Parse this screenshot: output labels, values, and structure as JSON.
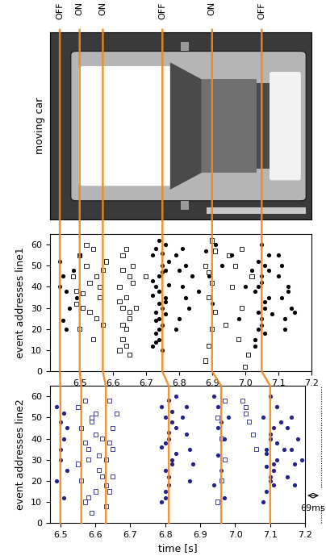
{
  "photo_label": "moving car",
  "transitions": [
    {
      "label": "OFF",
      "time_line1": 6.44,
      "time_line2": 6.5
    },
    {
      "label": "ON",
      "time_line1": 6.5,
      "time_line2": 6.56
    },
    {
      "label": "ON",
      "time_line1": 6.57,
      "time_line2": 6.63
    },
    {
      "label": "OFF",
      "time_line1": 6.75,
      "time_line2": 6.81
    },
    {
      "label": "ON",
      "time_line1": 6.9,
      "time_line2": 6.96
    },
    {
      "label": "OFF",
      "time_line1": 7.05,
      "time_line2": 7.1
    }
  ],
  "chart_data": [
    {
      "type": "scatter",
      "ylabel": "event addresses line1",
      "xlim": [
        6.41,
        7.2
      ],
      "ylim": [
        0,
        65
      ],
      "xticks": [
        6.5,
        6.6,
        6.7,
        6.8,
        6.9,
        7.0,
        7.1,
        7.2
      ],
      "yticks": [
        0,
        10,
        20,
        30,
        40,
        50,
        60
      ],
      "series": [
        {
          "color": "#000000",
          "marker": "circle",
          "x": [
            6.44,
            6.45,
            6.46,
            6.47,
            6.45,
            6.48,
            6.49,
            6.46,
            6.44,
            6.5,
            6.72,
            6.73,
            6.74,
            6.75,
            6.76,
            6.73,
            6.74,
            6.75,
            6.72,
            6.76,
            6.74,
            6.75,
            6.73,
            6.76,
            6.74,
            6.72,
            6.75,
            6.77,
            6.73,
            6.74,
            6.75,
            6.73,
            6.76,
            6.74,
            6.72,
            6.77,
            6.75,
            6.74,
            6.73,
            6.76,
            6.79,
            6.8,
            6.81,
            6.82,
            6.83,
            6.8,
            6.84,
            6.81,
            6.79,
            6.82,
            6.88,
            6.89,
            6.9,
            6.91,
            6.93,
            6.86,
            6.96,
            6.98,
            7.0,
            7.02,
            7.03,
            7.04,
            7.05,
            7.06,
            7.07,
            7.04,
            7.05,
            7.06,
            7.03,
            7.07,
            7.05,
            7.04,
            7.06,
            7.03,
            7.05,
            7.07,
            7.04,
            7.06,
            7.08,
            7.05,
            7.1,
            7.11,
            7.12,
            7.13,
            7.14,
            7.11,
            7.12,
            7.13,
            7.15,
            7.1
          ],
          "values": [
            52,
            45,
            38,
            30,
            24,
            48,
            35,
            20,
            40,
            55,
            12,
            18,
            25,
            30,
            35,
            40,
            45,
            50,
            55,
            60,
            15,
            22,
            28,
            33,
            38,
            43,
            47,
            52,
            58,
            20,
            10,
            14,
            27,
            32,
            36,
            41,
            56,
            62,
            24,
            48,
            55,
            48,
            40,
            35,
            30,
            25,
            45,
            58,
            20,
            50,
            57,
            45,
            32,
            60,
            50,
            38,
            55,
            25,
            40,
            48,
            15,
            20,
            25,
            30,
            35,
            40,
            45,
            50,
            12,
            55,
            22,
            28,
            33,
            38,
            42,
            48,
            52,
            18,
            27,
            60,
            45,
            35,
            25,
            40,
            30,
            50,
            20,
            38,
            28,
            55
          ]
        },
        {
          "color": "#000000",
          "marker": "square",
          "x": [
            6.48,
            6.49,
            6.5,
            6.51,
            6.52,
            6.53,
            6.54,
            6.55,
            6.56,
            6.57,
            6.5,
            6.52,
            6.54,
            6.56,
            6.58,
            6.49,
            6.53,
            6.55,
            6.57,
            6.51,
            6.62,
            6.63,
            6.64,
            6.65,
            6.63,
            6.64,
            6.62,
            6.65,
            6.66,
            6.63,
            6.64,
            6.63,
            6.65,
            6.62,
            6.66,
            6.64,
            6.63,
            6.65,
            6.67,
            6.7,
            6.88,
            6.89,
            6.9,
            6.91,
            6.89,
            6.9,
            6.88,
            6.91,
            6.9,
            6.89,
            6.95,
            6.97,
            6.99,
            7.0,
            6.96,
            6.98,
            7.01,
            6.94,
            7.02,
            6.99
          ],
          "values": [
            45,
            38,
            55,
            30,
            50,
            42,
            58,
            25,
            35,
            48,
            20,
            60,
            15,
            40,
            52,
            32,
            28,
            45,
            22,
            37,
            10,
            15,
            20,
            25,
            30,
            35,
            40,
            45,
            50,
            55,
            58,
            22,
            28,
            33,
            42,
            12,
            48,
            8,
            30,
            45,
            5,
            12,
            20,
            28,
            35,
            42,
            50,
            57,
            62,
            47,
            55,
            50,
            30,
            2,
            40,
            15,
            8,
            22,
            45,
            58
          ]
        }
      ]
    },
    {
      "type": "scatter",
      "ylabel": "event addresses line2",
      "xlabel": "time [s]",
      "annotations": [
        "69ms"
      ],
      "xlim": [
        6.47,
        7.2
      ],
      "ylim": [
        0,
        65
      ],
      "xticks": [
        6.5,
        6.6,
        6.7,
        6.8,
        6.9,
        7.0,
        7.1,
        7.2
      ],
      "yticks": [
        0,
        10,
        20,
        30,
        40,
        50,
        60
      ],
      "series": [
        {
          "color": "#23238c",
          "marker": "circle",
          "x": [
            6.49,
            6.5,
            6.51,
            6.5,
            6.52,
            6.49,
            6.51,
            6.5,
            6.52,
            6.51,
            6.79,
            6.8,
            6.81,
            6.82,
            6.83,
            6.8,
            6.81,
            6.82,
            6.79,
            6.83,
            6.81,
            6.8,
            6.82,
            6.79,
            6.81,
            6.83,
            6.8,
            6.82,
            6.81,
            6.8,
            6.85,
            6.86,
            6.87,
            6.88,
            6.86,
            6.87,
            6.94,
            6.95,
            6.96,
            6.97,
            6.95,
            6.96,
            6.94,
            6.97,
            6.98,
            6.95,
            7.08,
            7.09,
            7.1,
            7.11,
            7.12,
            7.09,
            7.1,
            7.11,
            7.08,
            7.12,
            7.1,
            7.11,
            7.09,
            7.12,
            7.1,
            7.13,
            7.11,
            7.09,
            7.14,
            7.1,
            7.15,
            7.16,
            7.17,
            7.18,
            7.15,
            7.16,
            7.19,
            7.17
          ],
          "values": [
            55,
            48,
            40,
            30,
            25,
            20,
            12,
            35,
            45,
            52,
            10,
            15,
            22,
            28,
            33,
            38,
            43,
            48,
            55,
            60,
            18,
            25,
            30,
            36,
            40,
            45,
            50,
            53,
            58,
            12,
            50,
            42,
            35,
            28,
            55,
            20,
            60,
            55,
            48,
            40,
            32,
            25,
            18,
            12,
            50,
            45,
            10,
            15,
            20,
            25,
            30,
            35,
            40,
            45,
            50,
            55,
            22,
            28,
            33,
            38,
            42,
            48,
            18,
            27,
            35,
            60,
            45,
            35,
            28,
            40,
            22,
            50,
            30,
            18
          ]
        },
        {
          "color": "#23238c",
          "marker": "square",
          "x": [
            6.55,
            6.56,
            6.57,
            6.58,
            6.59,
            6.6,
            6.61,
            6.56,
            6.58,
            6.6,
            6.57,
            6.59,
            6.61,
            6.62,
            6.55,
            6.58,
            6.6,
            6.62,
            6.57,
            6.59,
            6.63,
            6.64,
            6.65,
            6.63,
            6.64,
            6.65,
            6.66,
            6.64,
            6.63,
            6.65,
            6.95,
            6.96,
            6.97,
            6.96,
            6.95,
            6.97,
            7.02,
            7.03,
            7.04,
            7.05,
            7.03,
            7.06
          ],
          "values": [
            55,
            45,
            38,
            30,
            50,
            42,
            25,
            20,
            35,
            15,
            58,
            48,
            32,
            40,
            28,
            12,
            52,
            22,
            10,
            5,
            8,
            15,
            22,
            30,
            38,
            45,
            52,
            58,
            18,
            35,
            10,
            20,
            30,
            40,
            50,
            58,
            58,
            55,
            48,
            42,
            52,
            35
          ]
        }
      ]
    }
  ]
}
